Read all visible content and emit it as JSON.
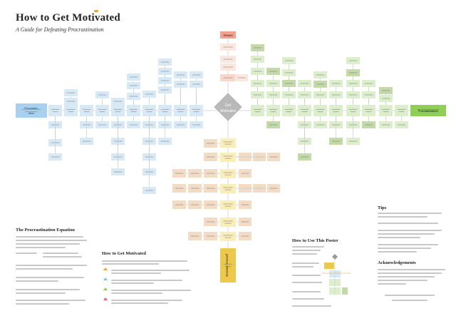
{
  "header": {
    "title": "How to Get Motivated",
    "subtitle": "A Guide for Defeating Procrastination"
  },
  "center": {
    "label": "Get Motivated"
  },
  "colors": {
    "blue_left": "#a9d0ee",
    "blue": "#d8e9f6",
    "green_right": "#8fcf56",
    "green": "#dceecb",
    "green_dark": "#c3d9a8",
    "red": "#f3a08c",
    "red_light": "#f9d6cc",
    "orange": "#f2dcc6",
    "yellow": "#f9edb8",
    "yellow_dark": "#ecc84b",
    "line": "#c8c8c8"
  },
  "left_end": {
    "label": "Procrastin- ation"
  },
  "right_end": {
    "label": "Procrastination"
  },
  "top_node": {
    "label": "Reward"
  },
  "bottom_node": {
    "label": "Motivate Yourself"
  },
  "sections": {
    "equation": {
      "title": "The Procrastination Equation"
    },
    "how_to": {
      "title": "How to Get Motivated"
    },
    "read_map": {
      "title": "How to Use This Poster"
    },
    "tips": {
      "title": "Tips"
    },
    "acknowledgements": {
      "title": "Acknowledgements"
    }
  }
}
